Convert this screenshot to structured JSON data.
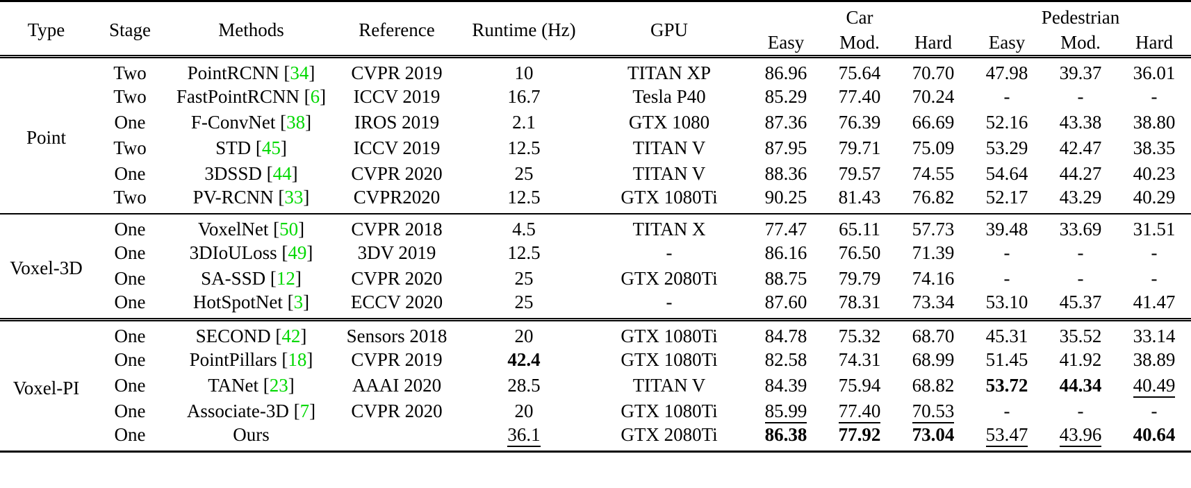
{
  "table": {
    "citation_color": "#00d800",
    "columns": {
      "type": "Type",
      "stage": "Stage",
      "methods": "Methods",
      "reference": "Reference",
      "runtime": "Runtime (Hz)",
      "gpu": "GPU",
      "car": "Car",
      "pedestrian": "Pedestrian",
      "sub": [
        "Easy",
        "Mod.",
        "Hard"
      ]
    },
    "groups": [
      {
        "type": "Point",
        "rows": [
          {
            "stage": "Two",
            "method": "PointRCNN",
            "cite": "34",
            "ref": "CVPR 2019",
            "runtime": [
              "10",
              ""
            ],
            "gpu": "TITAN XP",
            "vals": [
              [
                "86.96",
                ""
              ],
              [
                "75.64",
                ""
              ],
              [
                "70.70",
                ""
              ],
              [
                "47.98",
                ""
              ],
              [
                "39.37",
                ""
              ],
              [
                "36.01",
                ""
              ]
            ]
          },
          {
            "stage": "Two",
            "method": "FastPointRCNN",
            "cite": "6",
            "ref": "ICCV 2019",
            "runtime": [
              "16.7",
              ""
            ],
            "gpu": "Tesla P40",
            "vals": [
              [
                "85.29",
                ""
              ],
              [
                "77.40",
                ""
              ],
              [
                "70.24",
                ""
              ],
              [
                "-",
                ""
              ],
              [
                "-",
                ""
              ],
              [
                "-",
                ""
              ]
            ]
          },
          {
            "stage": "One",
            "method": "F-ConvNet",
            "cite": "38",
            "ref": "IROS 2019",
            "runtime": [
              "2.1",
              ""
            ],
            "gpu": "GTX 1080",
            "vals": [
              [
                "87.36",
                ""
              ],
              [
                "76.39",
                ""
              ],
              [
                "66.69",
                ""
              ],
              [
                "52.16",
                ""
              ],
              [
                "43.38",
                ""
              ],
              [
                "38.80",
                ""
              ]
            ]
          },
          {
            "stage": "Two",
            "method": "STD",
            "cite": "45",
            "ref": "ICCV 2019",
            "runtime": [
              "12.5",
              ""
            ],
            "gpu": "TITAN V",
            "vals": [
              [
                "87.95",
                ""
              ],
              [
                "79.71",
                ""
              ],
              [
                "75.09",
                ""
              ],
              [
                "53.29",
                ""
              ],
              [
                "42.47",
                ""
              ],
              [
                "38.35",
                ""
              ]
            ]
          },
          {
            "stage": "One",
            "method": "3DSSD",
            "cite": "44",
            "ref": "CVPR 2020",
            "runtime": [
              "25",
              ""
            ],
            "gpu": "TITAN V",
            "vals": [
              [
                "88.36",
                ""
              ],
              [
                "79.57",
                ""
              ],
              [
                "74.55",
                ""
              ],
              [
                "54.64",
                ""
              ],
              [
                "44.27",
                ""
              ],
              [
                "40.23",
                ""
              ]
            ]
          },
          {
            "stage": "Two",
            "method": "PV-RCNN",
            "cite": "33",
            "ref": "CVPR2020",
            "runtime": [
              "12.5",
              ""
            ],
            "gpu": "GTX 1080Ti",
            "vals": [
              [
                "90.25",
                ""
              ],
              [
                "81.43",
                ""
              ],
              [
                "76.82",
                ""
              ],
              [
                "52.17",
                ""
              ],
              [
                "43.29",
                ""
              ],
              [
                "40.29",
                ""
              ]
            ]
          }
        ]
      },
      {
        "type": "Voxel-3D",
        "rows": [
          {
            "stage": "One",
            "method": "VoxelNet",
            "cite": "50",
            "ref": "CVPR 2018",
            "runtime": [
              "4.5",
              ""
            ],
            "gpu": "TITAN X",
            "vals": [
              [
                "77.47",
                ""
              ],
              [
                "65.11",
                ""
              ],
              [
                "57.73",
                ""
              ],
              [
                "39.48",
                ""
              ],
              [
                "33.69",
                ""
              ],
              [
                "31.51",
                ""
              ]
            ]
          },
          {
            "stage": "One",
            "method": "3DIoULoss",
            "cite": "49",
            "ref": "3DV 2019",
            "runtime": [
              "12.5",
              ""
            ],
            "gpu": "-",
            "vals": [
              [
                "86.16",
                ""
              ],
              [
                "76.50",
                ""
              ],
              [
                "71.39",
                ""
              ],
              [
                "-",
                ""
              ],
              [
                "-",
                ""
              ],
              [
                "-",
                ""
              ]
            ]
          },
          {
            "stage": "One",
            "method": "SA-SSD",
            "cite": "12",
            "ref": "CVPR 2020",
            "runtime": [
              "25",
              ""
            ],
            "gpu": "GTX 2080Ti",
            "vals": [
              [
                "88.75",
                ""
              ],
              [
                "79.79",
                ""
              ],
              [
                "74.16",
                ""
              ],
              [
                "-",
                ""
              ],
              [
                "-",
                ""
              ],
              [
                "-",
                ""
              ]
            ]
          },
          {
            "stage": "One",
            "method": "HotSpotNet",
            "cite": "3",
            "ref": "ECCV 2020",
            "runtime": [
              "25",
              ""
            ],
            "gpu": "-",
            "vals": [
              [
                "87.60",
                ""
              ],
              [
                "78.31",
                ""
              ],
              [
                "73.34",
                ""
              ],
              [
                "53.10",
                ""
              ],
              [
                "45.37",
                ""
              ],
              [
                "41.47",
                ""
              ]
            ]
          }
        ]
      },
      {
        "type": "Voxel-PI",
        "rows": [
          {
            "stage": "One",
            "method": "SECOND",
            "cite": "42",
            "ref": "Sensors 2018",
            "runtime": [
              "20",
              ""
            ],
            "gpu": "GTX 1080Ti",
            "vals": [
              [
                "84.78",
                ""
              ],
              [
                "75.32",
                ""
              ],
              [
                "68.70",
                ""
              ],
              [
                "45.31",
                ""
              ],
              [
                "35.52",
                ""
              ],
              [
                "33.14",
                ""
              ]
            ]
          },
          {
            "stage": "One",
            "method": "PointPillars",
            "cite": "18",
            "ref": "CVPR 2019",
            "runtime": [
              "42.4",
              "b"
            ],
            "gpu": "GTX 1080Ti",
            "vals": [
              [
                "82.58",
                ""
              ],
              [
                "74.31",
                ""
              ],
              [
                "68.99",
                ""
              ],
              [
                "51.45",
                ""
              ],
              [
                "41.92",
                ""
              ],
              [
                "38.89",
                ""
              ]
            ]
          },
          {
            "stage": "One",
            "method": "TANet",
            "cite": "23",
            "ref": "AAAI 2020",
            "runtime": [
              "28.5",
              ""
            ],
            "gpu": "TITAN V",
            "vals": [
              [
                "84.39",
                ""
              ],
              [
                "75.94",
                ""
              ],
              [
                "68.82",
                ""
              ],
              [
                "53.72",
                "b"
              ],
              [
                "44.34",
                "b"
              ],
              [
                "40.49",
                "u"
              ]
            ]
          },
          {
            "stage": "One",
            "method": "Associate-3D",
            "cite": "7",
            "ref": "CVPR 2020",
            "runtime": [
              "20",
              ""
            ],
            "gpu": "GTX 1080Ti",
            "vals": [
              [
                "85.99",
                "u"
              ],
              [
                "77.40",
                "u"
              ],
              [
                "70.53",
                "u"
              ],
              [
                "-",
                ""
              ],
              [
                "-",
                ""
              ],
              [
                "-",
                ""
              ]
            ]
          },
          {
            "stage": "One",
            "method": "Ours",
            "cite": "",
            "ref": "",
            "runtime": [
              "36.1",
              "u"
            ],
            "gpu": "GTX 2080Ti",
            "vals": [
              [
                "86.38",
                "b"
              ],
              [
                "77.92",
                "b"
              ],
              [
                "73.04",
                "b"
              ],
              [
                "53.47",
                "u"
              ],
              [
                "43.96",
                "u"
              ],
              [
                "40.64",
                "b"
              ]
            ]
          }
        ]
      }
    ]
  }
}
